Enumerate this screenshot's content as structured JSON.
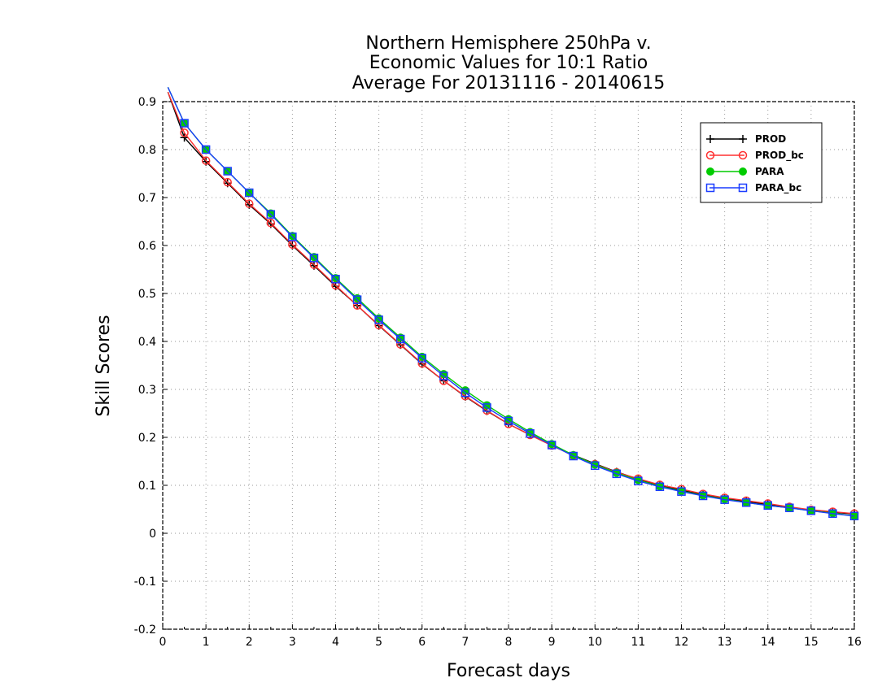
{
  "chart_data": {
    "type": "line",
    "title": [
      "Northern Hemisphere 250hPa v.",
      "Economic Values for 10:1 Ratio",
      "Average For 20131116 - 20140615"
    ],
    "xlabel": "Forecast days",
    "ylabel": "Skill Scores",
    "xlim": [
      0,
      16
    ],
    "ylim": [
      -0.2,
      0.9
    ],
    "xticks": [
      "0",
      "1",
      "2",
      "3",
      "4",
      "5",
      "6",
      "7",
      "8",
      "9",
      "10",
      "11",
      "12",
      "13",
      "14",
      "15",
      "16"
    ],
    "yticks": [
      "-0.2",
      "-0.1",
      "0",
      "0.1",
      "0.2",
      "0.3",
      "0.4",
      "0.5",
      "0.6",
      "0.7",
      "0.8",
      "0.9"
    ],
    "ytick_values": [
      -0.2,
      -0.1,
      0,
      0.1,
      0.2,
      0.3,
      0.4,
      0.5,
      0.6,
      0.7,
      0.8,
      0.9
    ],
    "grid": true,
    "legend_position": "top-right",
    "x": [
      0.5,
      1,
      1.5,
      2,
      2.5,
      3,
      3.5,
      4,
      4.5,
      5,
      5.5,
      6,
      6.5,
      7,
      7.5,
      8,
      8.5,
      9,
      9.5,
      10,
      10.5,
      11,
      11.5,
      12,
      12.5,
      13,
      13.5,
      14,
      14.5,
      15,
      15.5,
      16
    ],
    "series": [
      {
        "name": "PROD",
        "color": "#000000",
        "marker": "plus",
        "start": [
          0.12,
          0.92
        ],
        "values": [
          0.825,
          0.775,
          0.73,
          0.685,
          0.645,
          0.6,
          0.558,
          0.515,
          0.475,
          0.433,
          0.393,
          0.353,
          0.318,
          0.285,
          0.255,
          0.228,
          0.205,
          0.183,
          0.163,
          0.145,
          0.128,
          0.113,
          0.1,
          0.09,
          0.08,
          0.073,
          0.066,
          0.06,
          0.054,
          0.048,
          0.044,
          0.04
        ]
      },
      {
        "name": "PROD_bc",
        "color": "#ff3030",
        "marker": "circle",
        "start": [
          0.12,
          0.92
        ],
        "values": [
          0.835,
          0.777,
          0.732,
          0.687,
          0.647,
          0.602,
          0.56,
          0.517,
          0.475,
          0.434,
          0.394,
          0.354,
          0.318,
          0.286,
          0.256,
          0.228,
          0.205,
          0.183,
          0.162,
          0.144,
          0.127,
          0.114,
          0.101,
          0.092,
          0.082,
          0.074,
          0.068,
          0.062,
          0.055,
          0.049,
          0.045,
          0.041
        ]
      },
      {
        "name": "PARA",
        "color": "#00cc00",
        "marker": "filled-circle",
        "start": [
          0.12,
          0.93
        ],
        "values": [
          0.855,
          0.8,
          0.755,
          0.71,
          0.667,
          0.62,
          0.576,
          0.532,
          0.49,
          0.448,
          0.408,
          0.368,
          0.332,
          0.298,
          0.267,
          0.238,
          0.211,
          0.186,
          0.163,
          0.143,
          0.126,
          0.111,
          0.098,
          0.088,
          0.079,
          0.071,
          0.064,
          0.058,
          0.053,
          0.047,
          0.042,
          0.036
        ]
      },
      {
        "name": "PARA_bc",
        "color": "#1a3cff",
        "marker": "square",
        "start": [
          0.12,
          0.93
        ],
        "values": [
          0.855,
          0.8,
          0.755,
          0.71,
          0.665,
          0.618,
          0.574,
          0.53,
          0.487,
          0.445,
          0.405,
          0.365,
          0.328,
          0.293,
          0.262,
          0.234,
          0.208,
          0.184,
          0.161,
          0.141,
          0.124,
          0.109,
          0.097,
          0.087,
          0.078,
          0.07,
          0.064,
          0.058,
          0.053,
          0.047,
          0.041,
          0.036
        ]
      }
    ]
  }
}
